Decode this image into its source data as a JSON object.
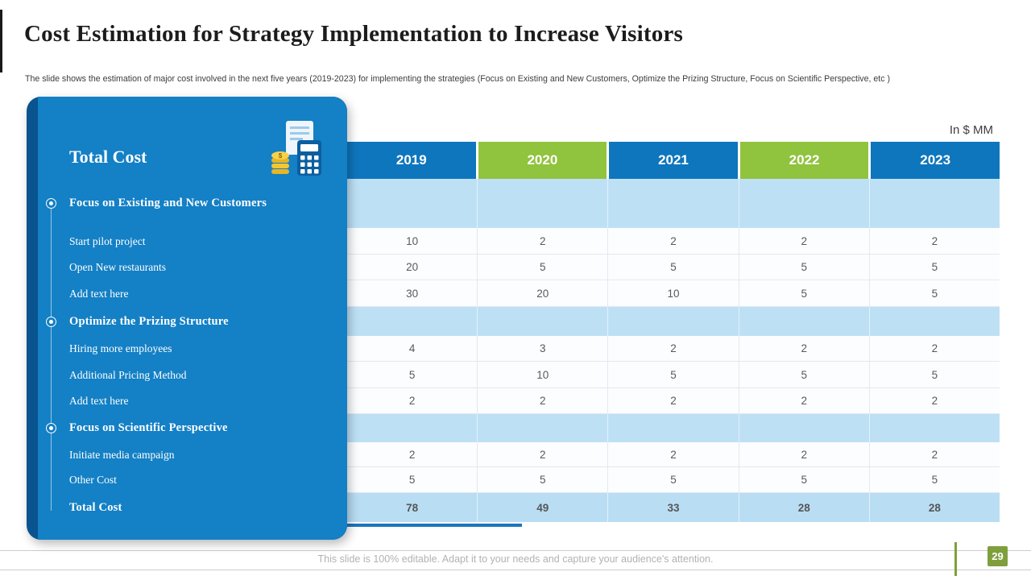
{
  "slide": {
    "title": "Cost Estimation for Strategy Implementation to Increase Visitors",
    "subtitle": "The slide shows the estimation of major cost involved in the next five years (2019-2023) for implementing the strategies (Focus on Existing and New Customers, Optimize the Prizing Structure, Focus on Scientific Perspective, etc )",
    "unit_label": "In $ MM",
    "footer_note": "This slide is 100% editable. Adapt it to your needs and capture your audience's attention.",
    "page_number": "29"
  },
  "panel": {
    "title": "Total Cost",
    "icon": "calculator-document-money-icon"
  },
  "chart_data": {
    "type": "table",
    "title": "Cost Estimation for Strategy Implementation to Increase Visitors",
    "unit": "In $ MM",
    "columns": [
      "2019",
      "2020",
      "2021",
      "2022",
      "2023"
    ],
    "header_styles": [
      "blue",
      "green",
      "blue",
      "green",
      "blue"
    ],
    "rows": [
      {
        "label": "Focus on Existing and New Customers",
        "type": "section",
        "values": [
          "",
          "",
          "",
          "",
          ""
        ]
      },
      {
        "label": "Start pilot project",
        "type": "data",
        "values": [
          10,
          2,
          2,
          2,
          2
        ]
      },
      {
        "label": "Open New restaurants",
        "type": "data",
        "values": [
          20,
          5,
          5,
          5,
          5
        ]
      },
      {
        "label": "Add text here",
        "type": "data",
        "values": [
          30,
          20,
          10,
          5,
          5
        ]
      },
      {
        "label": "Optimize the Prizing Structure",
        "type": "section",
        "values": [
          "",
          "",
          "",
          "",
          ""
        ]
      },
      {
        "label": "Hiring more employees",
        "type": "data",
        "values": [
          4,
          3,
          2,
          2,
          2
        ]
      },
      {
        "label": "Additional Pricing Method",
        "type": "data",
        "values": [
          5,
          10,
          5,
          5,
          5
        ]
      },
      {
        "label": "Add text here",
        "type": "data",
        "values": [
          2,
          2,
          2,
          2,
          2
        ]
      },
      {
        "label": "Focus on Scientific Perspective",
        "type": "section",
        "values": [
          "",
          "",
          "",
          "",
          ""
        ]
      },
      {
        "label": "Initiate media campaign",
        "type": "data",
        "values": [
          2,
          2,
          2,
          2,
          2
        ]
      },
      {
        "label": "Other Cost",
        "type": "data",
        "values": [
          5,
          5,
          5,
          5,
          5
        ]
      },
      {
        "label": "Total Cost",
        "type": "total",
        "values": [
          78,
          49,
          33,
          28,
          28
        ]
      }
    ]
  },
  "colors": {
    "header_blue": "#0e76bd",
    "header_green": "#90c33e",
    "panel_blue": "#1480c5",
    "panel_dark": "#09538f",
    "section_bg": "#bee0f5",
    "total_bg": "#b9ddf3",
    "underline_blue": "#1d76bc",
    "accent_green": "#7f9f3d"
  }
}
